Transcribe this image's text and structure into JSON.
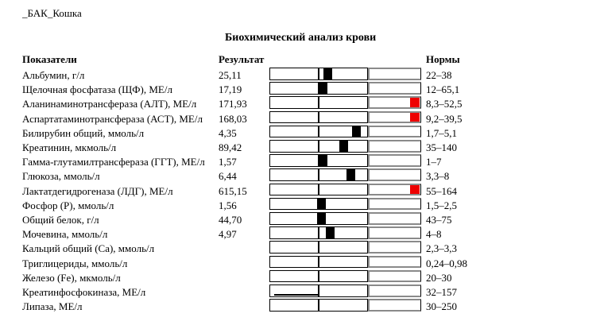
{
  "page": {
    "doc_label": "_БАК_Кошка",
    "title": "Биохимический анализ крови"
  },
  "table": {
    "headers": {
      "indicator": "Показатели",
      "result": "Результат",
      "norm": "Нормы"
    },
    "rows": [
      {
        "label": "Альбумин, г/л",
        "result": "25,11",
        "value": 25.11,
        "norm": "22–38",
        "norm_min": 22,
        "norm_max": 38,
        "status": "normal"
      },
      {
        "label": "Щелочная фосфатаза (ЩФ), МЕ/л",
        "result": "17,19",
        "value": 17.19,
        "norm": "12–65,1",
        "norm_min": 12,
        "norm_max": 65.1,
        "status": "normal"
      },
      {
        "label": "Аланинаминотрансфераза (АЛТ), МЕ/л",
        "result": "171,93",
        "value": 171.93,
        "norm": "8,3–52,5",
        "norm_min": 8.3,
        "norm_max": 52.5,
        "status": "high"
      },
      {
        "label": "Аспартатаминотрансфераза (АСТ), МЕ/л",
        "result": "168,03",
        "value": 168.03,
        "norm": "9,2–39,5",
        "norm_min": 9.2,
        "norm_max": 39.5,
        "status": "high"
      },
      {
        "label": "Билирубин общий, ммоль/л",
        "result": "4,35",
        "value": 4.35,
        "norm": "1,7–5,1",
        "norm_min": 1.7,
        "norm_max": 5.1,
        "status": "normal"
      },
      {
        "label": "Креатинин, мкмоль/л",
        "result": "89,42",
        "value": 89.42,
        "norm": "35–140",
        "norm_min": 35,
        "norm_max": 140,
        "status": "normal"
      },
      {
        "label": "Гамма-глутамилтрансфераза (ГГТ), МЕ/л",
        "result": "1,57",
        "value": 1.57,
        "norm": "1–7",
        "norm_min": 1,
        "norm_max": 7,
        "status": "normal"
      },
      {
        "label": "Глюкоза, ммоль/л",
        "result": "6,44",
        "value": 6.44,
        "norm": "3,3–8",
        "norm_min": 3.3,
        "norm_max": 8,
        "status": "normal"
      },
      {
        "label": "Лактатдегидрогеназа (ЛДГ), МЕ/л",
        "result": "615,15",
        "value": 615.15,
        "norm": "55–164",
        "norm_min": 55,
        "norm_max": 164,
        "status": "high"
      },
      {
        "label": "Фосфор (P), ммоль/л",
        "result": "1,56",
        "value": 1.56,
        "norm": "1,5–2,5",
        "norm_min": 1.5,
        "norm_max": 2.5,
        "status": "normal"
      },
      {
        "label": "Общий белок, г/л",
        "result": "44,70",
        "value": 44.7,
        "norm": "43–75",
        "norm_min": 43,
        "norm_max": 75,
        "status": "normal"
      },
      {
        "label": "Мочевина, ммоль/л",
        "result": "4,97",
        "value": 4.97,
        "norm": "4–8",
        "norm_min": 4,
        "norm_max": 8,
        "status": "normal"
      },
      {
        "label": "Кальций общий (Ca), ммоль/л",
        "result": "",
        "value": null,
        "norm": "2,3–3,3",
        "norm_min": 2.3,
        "norm_max": 3.3,
        "status": "empty"
      },
      {
        "label": "Триглицериды, ммоль/л",
        "result": "",
        "value": null,
        "norm": "0,24–0,98",
        "norm_min": 0.24,
        "norm_max": 0.98,
        "status": "empty"
      },
      {
        "label": "Железо (Fe), мкмоль/л",
        "result": "",
        "value": null,
        "norm": "20–30",
        "norm_min": 20,
        "norm_max": 30,
        "status": "empty"
      },
      {
        "label": "Креатинфосфокиназа, МЕ/л",
        "result": "",
        "value": null,
        "norm": "32–157",
        "norm_min": 32,
        "norm_max": 157,
        "status": "empty",
        "bar_underline": true
      },
      {
        "label": "Липаза, МЕ/л",
        "result": "",
        "value": null,
        "norm": "30–250",
        "norm_min": 30,
        "norm_max": 250,
        "status": "empty"
      }
    ]
  },
  "chart_data": {
    "type": "bar",
    "subtype": "range-indicator-bars",
    "title": "Биохимический анализ крови",
    "categories": [
      "Альбумин, г/л",
      "Щелочная фосфатаза (ЩФ), МЕ/л",
      "Аланинаминотрансфераза (АЛТ), МЕ/л",
      "Аспартатаминотрансфераза (АСТ), МЕ/л",
      "Билирубин общий, ммоль/л",
      "Креатинин, мкмоль/л",
      "Гамма-глутамилтрансфераза (ГГТ), МЕ/л",
      "Глюкоза, ммоль/л",
      "Лактатдегидрогеназа (ЛДГ), МЕ/л",
      "Фосфор (P), ммоль/л",
      "Общий белок, г/л",
      "Мочевина, ммоль/л",
      "Кальций общий (Ca), ммоль/л",
      "Триглицериды, ммоль/л",
      "Железо (Fe), мкмоль/л",
      "Креатинфосфокиназа, МЕ/л",
      "Липаза, МЕ/л"
    ],
    "values": [
      25.11,
      17.19,
      171.93,
      168.03,
      4.35,
      89.42,
      1.57,
      6.44,
      615.15,
      1.56,
      44.7,
      4.97,
      null,
      null,
      null,
      null,
      null
    ],
    "norm_ranges": [
      [
        22,
        38
      ],
      [
        12,
        65.1
      ],
      [
        8.3,
        52.5
      ],
      [
        9.2,
        39.5
      ],
      [
        1.7,
        5.1
      ],
      [
        35,
        140
      ],
      [
        1,
        7
      ],
      [
        3.3,
        8
      ],
      [
        55,
        164
      ],
      [
        1.5,
        2.5
      ],
      [
        43,
        75
      ],
      [
        4,
        8
      ],
      [
        2.3,
        3.3
      ],
      [
        0.24,
        0.98
      ],
      [
        20,
        30
      ],
      [
        32,
        157
      ],
      [
        30,
        250
      ]
    ],
    "marker_rule": "black marker positioned proportionally within middle (normal-range) segment; red marker at far right of overflow segment when value exceeds norm_max; no marker when value missing"
  },
  "colors": {
    "marker_normal": "#000000",
    "marker_high": "#ee0000",
    "bar_border": "#000000",
    "overflow_border": "#8a8a8a"
  }
}
